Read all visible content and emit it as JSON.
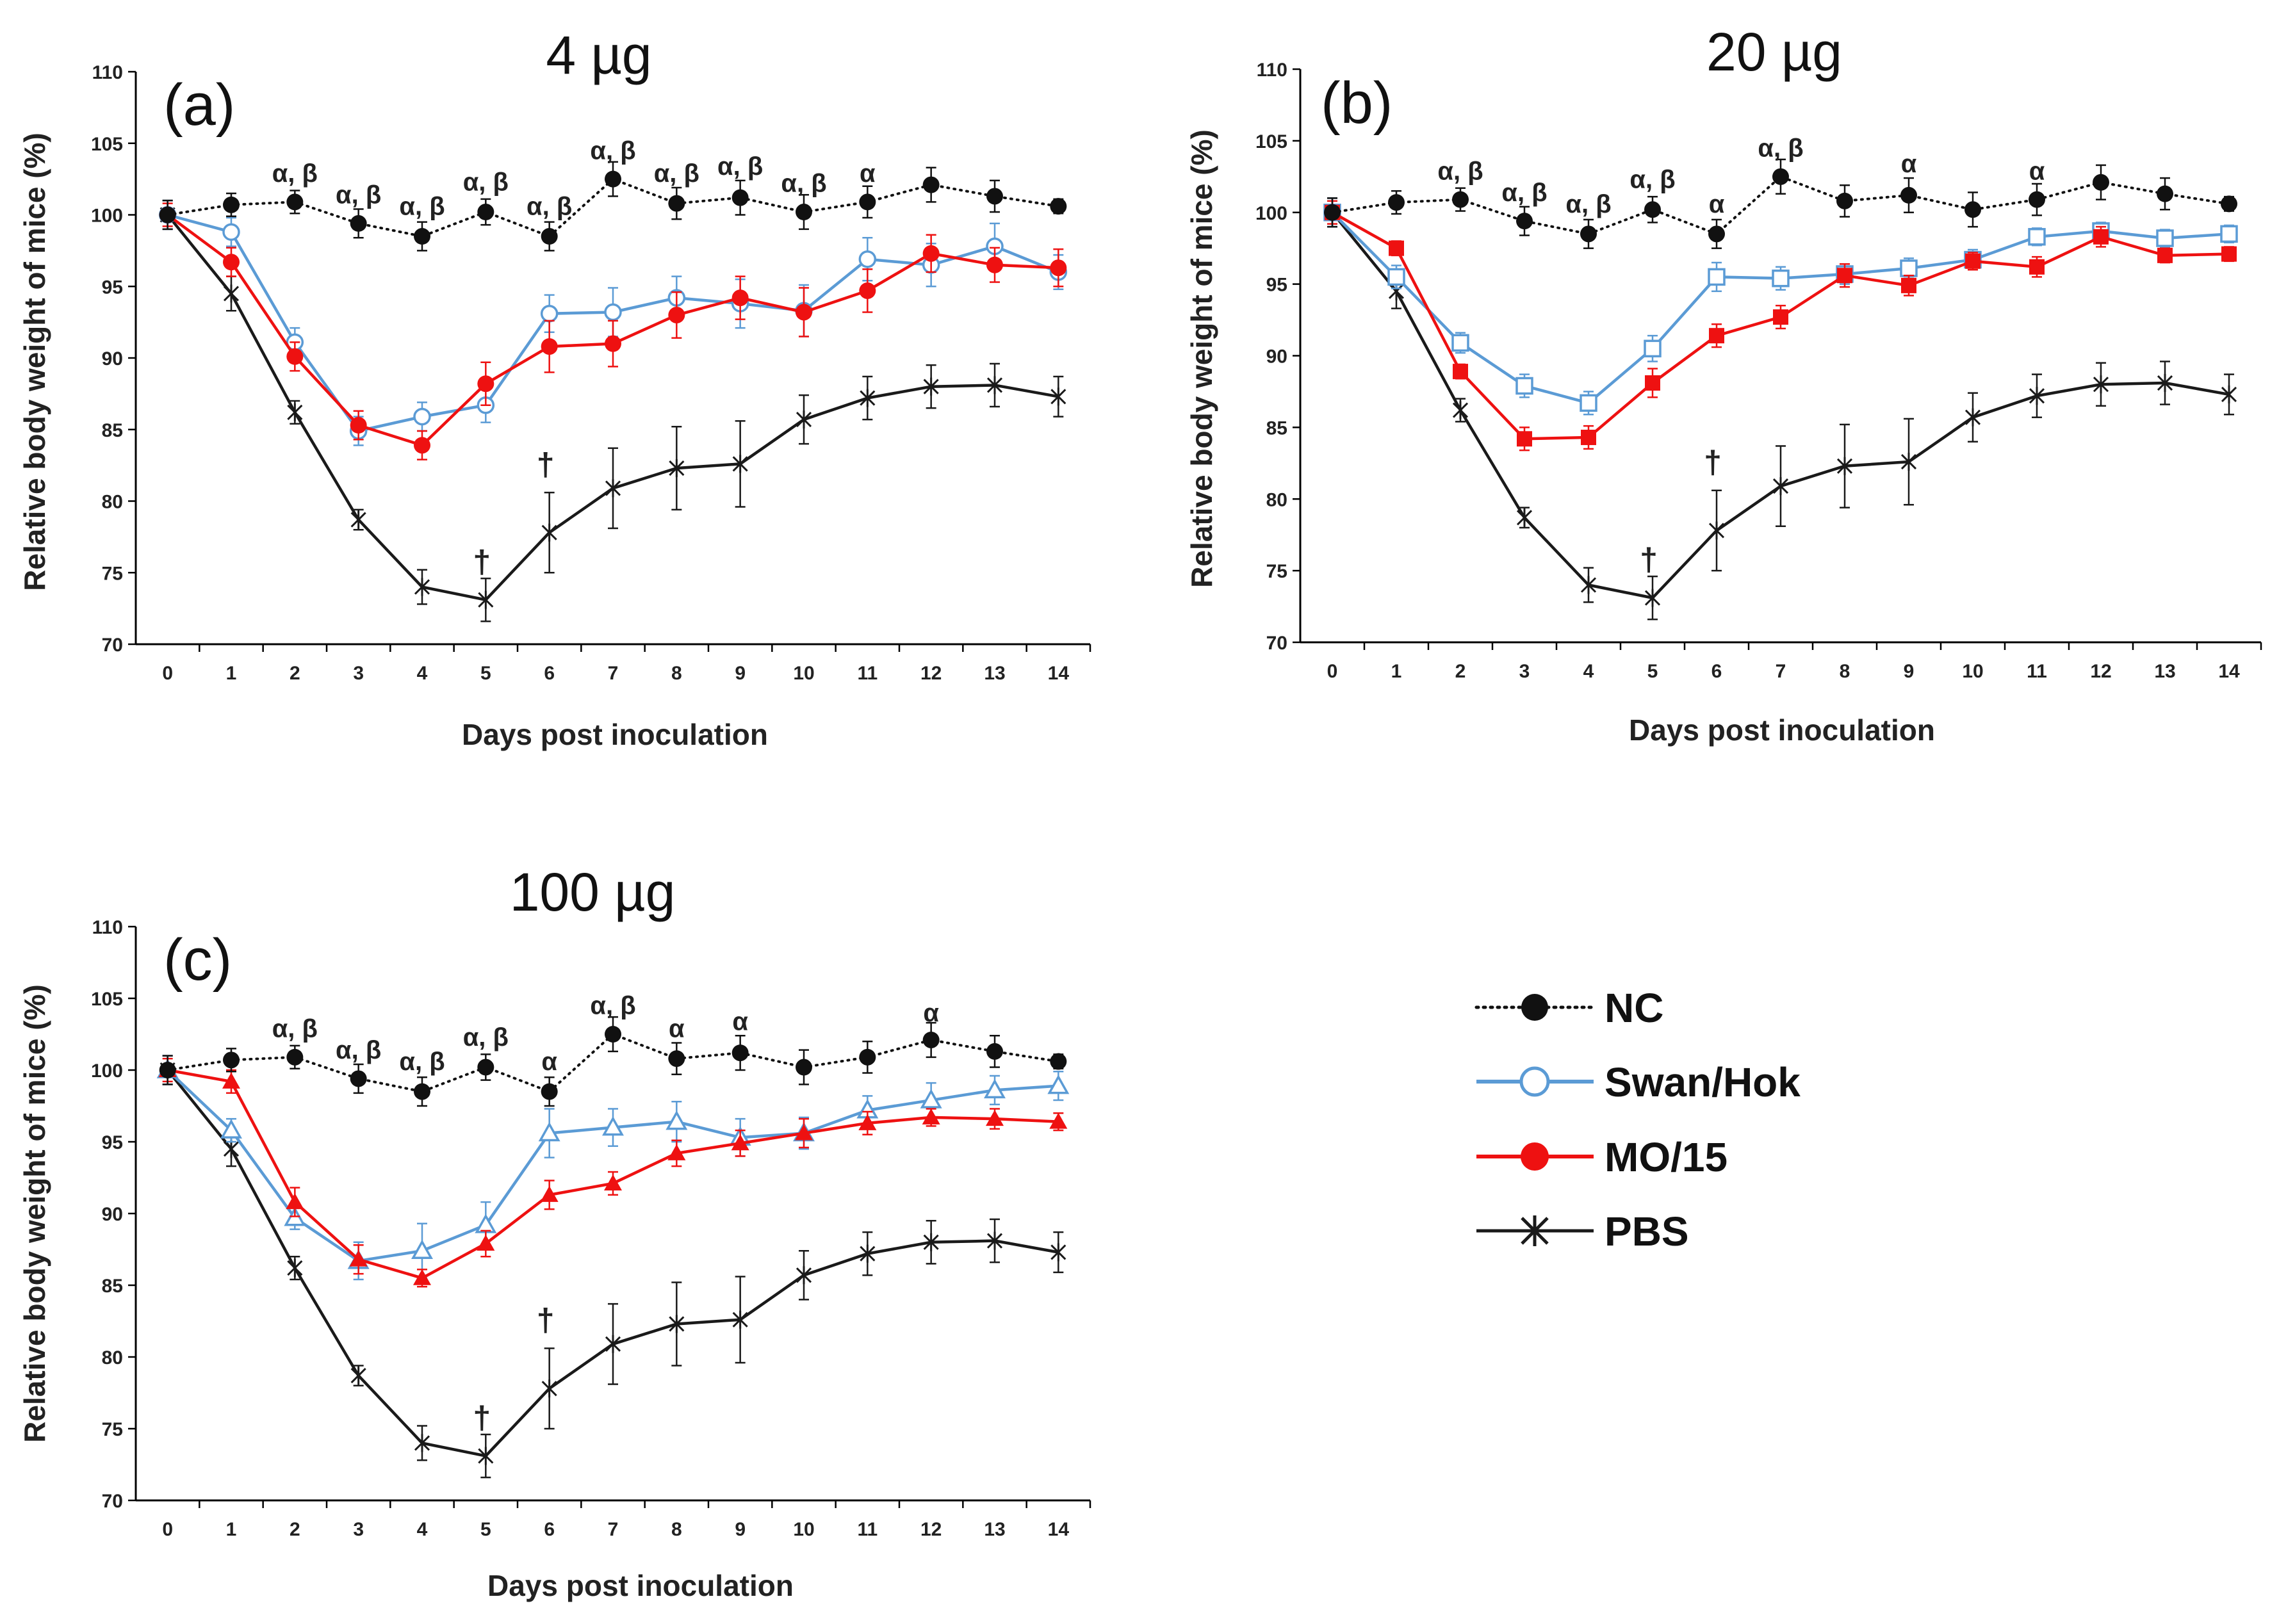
{
  "colors": {
    "NC": "#111111",
    "Swan/Hok": "#5b9bd5",
    "MO/15": "#ee1111",
    "PBS": "#1a1a1a"
  },
  "legend": {
    "entries": [
      {
        "name": "NC",
        "marker": "filled-circle",
        "line": "dotted"
      },
      {
        "name": "Swan/Hok",
        "marker": "open-circle",
        "line": "solid"
      },
      {
        "name": "MO/15",
        "marker": "filled-circle",
        "line": "solid"
      },
      {
        "name": "PBS",
        "marker": "asterisk",
        "line": "solid"
      }
    ]
  },
  "chart_data": [
    {
      "type": "line",
      "panel": "(a)",
      "title": "4 µg",
      "xlabel": "Days post inoculation",
      "ylabel": "Relative body weight of mice (%)",
      "xlim": [
        0,
        14
      ],
      "ylim": [
        70,
        110
      ],
      "x_ticks": [
        0,
        1,
        2,
        3,
        4,
        5,
        6,
        7,
        8,
        9,
        10,
        11,
        12,
        13,
        14
      ],
      "y_ticks": [
        70,
        75,
        80,
        85,
        90,
        95,
        100,
        105,
        110
      ],
      "grid": false,
      "swan_marker": "open-circle",
      "mo_marker": "filled-circle",
      "series": [
        {
          "name": "NC",
          "values": [
            100,
            100.7,
            100.9,
            99.4,
            98.5,
            100.2,
            98.5,
            102.5,
            100.8,
            101.2,
            100.2,
            100.9,
            102.1,
            101.3,
            100.6
          ],
          "errors": [
            1.0,
            0.8,
            0.8,
            1.0,
            1.0,
            0.9,
            1.0,
            1.2,
            1.1,
            1.2,
            1.2,
            1.1,
            1.2,
            1.1,
            0.5
          ]
        },
        {
          "name": "Swan/Hok",
          "values": [
            100,
            98.8,
            91.1,
            84.9,
            85.9,
            86.7,
            93.1,
            93.2,
            94.2,
            93.8,
            93.3,
            96.9,
            96.5,
            97.8,
            96.0
          ],
          "errors": [
            1.0,
            1.0,
            1.0,
            1.0,
            1.0,
            1.2,
            1.3,
            1.7,
            1.5,
            1.7,
            1.8,
            1.5,
            1.5,
            1.6,
            1.2
          ]
        },
        {
          "name": "MO/15",
          "values": [
            100,
            96.7,
            90.1,
            85.3,
            83.9,
            88.2,
            90.8,
            91.0,
            93.0,
            94.2,
            93.2,
            94.7,
            97.3,
            96.5,
            96.3
          ],
          "errors": [
            0.8,
            1.0,
            1.0,
            1.0,
            1.0,
            1.5,
            1.8,
            1.6,
            1.6,
            1.5,
            1.7,
            1.5,
            1.3,
            1.2,
            1.3
          ]
        },
        {
          "name": "PBS",
          "values": [
            100,
            94.5,
            86.2,
            78.7,
            74.0,
            73.1,
            77.8,
            80.9,
            82.3,
            82.6,
            85.7,
            87.2,
            88.0,
            88.1,
            87.3
          ],
          "errors": [
            1.0,
            1.2,
            0.8,
            0.7,
            1.2,
            1.5,
            2.8,
            2.8,
            2.9,
            3.0,
            1.7,
            1.5,
            1.5,
            1.5,
            1.4
          ]
        }
      ],
      "annotations": [
        {
          "x": 2,
          "y": 102.3,
          "text": "α, β"
        },
        {
          "x": 3,
          "y": 100.8,
          "text": "α, β"
        },
        {
          "x": 4,
          "y": 100.0,
          "text": "α, β"
        },
        {
          "x": 5,
          "y": 101.7,
          "text": "α, β"
        },
        {
          "x": 6,
          "y": 100.0,
          "text": "α, β"
        },
        {
          "x": 7,
          "y": 103.9,
          "text": "α, β"
        },
        {
          "x": 8,
          "y": 102.3,
          "text": "α, β"
        },
        {
          "x": 9,
          "y": 102.8,
          "text": "α, β"
        },
        {
          "x": 10,
          "y": 101.6,
          "text": "α, β"
        },
        {
          "x": 11,
          "y": 102.3,
          "text": "α"
        },
        {
          "x": 5,
          "y": 75.0,
          "text": "†"
        },
        {
          "x": 6,
          "y": 81.8,
          "text": "†"
        }
      ]
    },
    {
      "type": "line",
      "panel": "(b)",
      "title": "20 µg",
      "xlabel": "Days post inoculation",
      "ylabel": "Relative body weight of mice (%)",
      "xlim": [
        0,
        14
      ],
      "ylim": [
        70,
        110
      ],
      "x_ticks": [
        0,
        1,
        2,
        3,
        4,
        5,
        6,
        7,
        8,
        9,
        10,
        11,
        12,
        13,
        14
      ],
      "y_ticks": [
        70,
        75,
        80,
        85,
        90,
        95,
        100,
        105,
        110
      ],
      "grid": false,
      "swan_marker": "open-square",
      "mo_marker": "filled-square",
      "series": [
        {
          "name": "NC",
          "values": [
            100,
            100.7,
            100.9,
            99.4,
            98.5,
            100.2,
            98.5,
            102.5,
            100.8,
            101.2,
            100.2,
            100.9,
            102.1,
            101.3,
            100.6
          ],
          "errors": [
            1.0,
            0.8,
            0.8,
            1.0,
            1.0,
            0.9,
            1.0,
            1.2,
            1.1,
            1.2,
            1.2,
            1.1,
            1.2,
            1.1,
            0.5
          ]
        },
        {
          "name": "Swan/Hok",
          "values": [
            100,
            95.5,
            90.9,
            87.9,
            86.7,
            90.5,
            95.5,
            95.4,
            95.7,
            96.1,
            96.7,
            98.3,
            98.7,
            98.2,
            98.5
          ],
          "errors": [
            1.0,
            0.8,
            0.7,
            0.8,
            0.8,
            0.9,
            1.0,
            0.8,
            0.7,
            0.7,
            0.7,
            0.6,
            0.6,
            0.6,
            0.6
          ]
        },
        {
          "name": "MO/15",
          "values": [
            100,
            97.5,
            88.9,
            84.2,
            84.3,
            88.1,
            91.4,
            92.7,
            95.6,
            94.9,
            96.6,
            96.2,
            98.3,
            97.0,
            97.1
          ],
          "errors": [
            0.8,
            0.5,
            0.5,
            0.8,
            0.8,
            1.0,
            0.8,
            0.8,
            0.8,
            0.7,
            0.6,
            0.7,
            0.7,
            0.5,
            0.5
          ]
        },
        {
          "name": "PBS",
          "values": [
            100,
            94.5,
            86.2,
            78.7,
            74.0,
            73.1,
            77.8,
            80.9,
            82.3,
            82.6,
            85.7,
            87.2,
            88.0,
            88.1,
            87.3
          ],
          "errors": [
            1.0,
            1.2,
            0.8,
            0.7,
            1.2,
            1.5,
            2.8,
            2.8,
            2.9,
            3.0,
            1.7,
            1.5,
            1.5,
            1.5,
            1.4
          ]
        }
      ],
      "annotations": [
        {
          "x": 2,
          "y": 102.3,
          "text": "α, β"
        },
        {
          "x": 3,
          "y": 100.8,
          "text": "α, β"
        },
        {
          "x": 4,
          "y": 100.0,
          "text": "α, β"
        },
        {
          "x": 5,
          "y": 101.7,
          "text": "α, β"
        },
        {
          "x": 6,
          "y": 100.0,
          "text": "α"
        },
        {
          "x": 7,
          "y": 103.9,
          "text": "α, β"
        },
        {
          "x": 9,
          "y": 102.8,
          "text": "α"
        },
        {
          "x": 11,
          "y": 102.3,
          "text": "α"
        },
        {
          "x": 5,
          "y": 75.0,
          "text": "†"
        },
        {
          "x": 6,
          "y": 81.8,
          "text": "†"
        }
      ]
    },
    {
      "type": "line",
      "panel": "(c)",
      "title": "100 µg",
      "xlabel": "Days post inoculation",
      "ylabel": "Relative body weight of mice (%)",
      "xlim": [
        0,
        14
      ],
      "ylim": [
        70,
        110
      ],
      "x_ticks": [
        0,
        1,
        2,
        3,
        4,
        5,
        6,
        7,
        8,
        9,
        10,
        11,
        12,
        13,
        14
      ],
      "y_ticks": [
        70,
        75,
        80,
        85,
        90,
        95,
        100,
        105,
        110
      ],
      "grid": false,
      "swan_marker": "open-triangle",
      "mo_marker": "filled-triangle",
      "series": [
        {
          "name": "NC",
          "values": [
            100,
            100.7,
            100.9,
            99.4,
            98.5,
            100.2,
            98.5,
            102.5,
            100.8,
            101.2,
            100.2,
            100.9,
            102.1,
            101.3,
            100.6
          ],
          "errors": [
            1.0,
            0.8,
            0.8,
            1.0,
            1.0,
            0.9,
            1.0,
            1.2,
            1.1,
            1.2,
            1.2,
            1.1,
            1.2,
            1.1,
            0.5
          ]
        },
        {
          "name": "Swan/Hok",
          "values": [
            100,
            95.8,
            89.7,
            86.7,
            87.4,
            89.2,
            95.6,
            96.0,
            96.4,
            95.3,
            95.6,
            97.2,
            97.9,
            98.6,
            98.9
          ],
          "errors": [
            1.0,
            0.8,
            0.8,
            1.3,
            1.9,
            1.6,
            1.7,
            1.3,
            1.4,
            1.3,
            1.1,
            1.0,
            1.2,
            1.0,
            1.0
          ]
        },
        {
          "name": "MO/15",
          "values": [
            100,
            99.2,
            90.8,
            86.8,
            85.5,
            87.9,
            91.3,
            92.1,
            94.2,
            94.9,
            95.6,
            96.3,
            96.7,
            96.6,
            96.4
          ],
          "errors": [
            0.8,
            0.8,
            1.0,
            1.0,
            0.6,
            0.9,
            1.0,
            0.8,
            0.9,
            0.9,
            1.0,
            0.8,
            0.6,
            0.7,
            0.6
          ]
        },
        {
          "name": "PBS",
          "values": [
            100,
            94.5,
            86.2,
            78.7,
            74.0,
            73.1,
            77.8,
            80.9,
            82.3,
            82.6,
            85.7,
            87.2,
            88.0,
            88.1,
            87.3
          ],
          "errors": [
            1.0,
            1.2,
            0.8,
            0.7,
            1.2,
            1.5,
            2.8,
            2.8,
            2.9,
            3.0,
            1.7,
            1.5,
            1.5,
            1.5,
            1.4
          ]
        }
      ],
      "annotations": [
        {
          "x": 2,
          "y": 102.3,
          "text": "α, β"
        },
        {
          "x": 3,
          "y": 100.8,
          "text": "α, β"
        },
        {
          "x": 4,
          "y": 100.0,
          "text": "α, β"
        },
        {
          "x": 5,
          "y": 101.7,
          "text": "α, β"
        },
        {
          "x": 6,
          "y": 100.0,
          "text": "α"
        },
        {
          "x": 7,
          "y": 103.9,
          "text": "α, β"
        },
        {
          "x": 8,
          "y": 102.3,
          "text": "α"
        },
        {
          "x": 9,
          "y": 102.8,
          "text": "α"
        },
        {
          "x": 12,
          "y": 103.4,
          "text": "α"
        },
        {
          "x": 5,
          "y": 75.0,
          "text": "†"
        },
        {
          "x": 6,
          "y": 81.8,
          "text": "†"
        }
      ]
    }
  ]
}
